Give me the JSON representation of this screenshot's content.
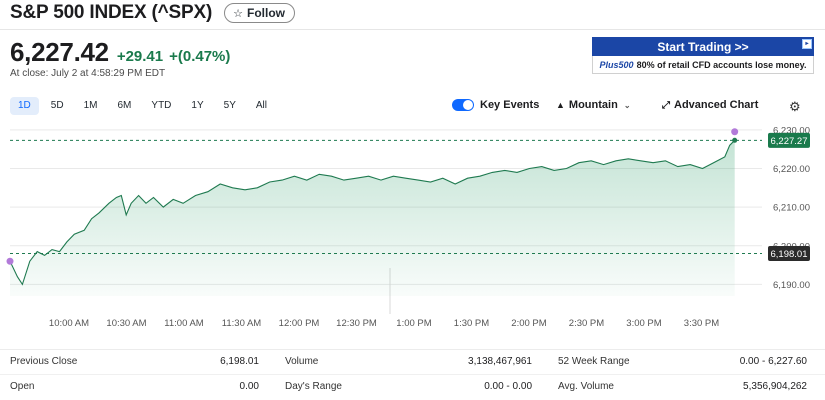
{
  "header": {
    "title": "S&P 500 INDEX (^SPX)",
    "follow_label": "Follow"
  },
  "quote": {
    "price": "6,227.42",
    "change": "+29.41",
    "change_percent": "+(0.47%)",
    "close_time": "At close: July 2 at 4:58:29 PM EDT"
  },
  "ad": {
    "cta": "Start Trading >>",
    "logo": "Plus500",
    "disclaimer": "80% of retail CFD accounts lose money."
  },
  "range_tabs": [
    "1D",
    "5D",
    "1M",
    "6M",
    "YTD",
    "1Y",
    "5Y",
    "All"
  ],
  "controls": {
    "key_events": "Key Events",
    "chart_type": "Mountain",
    "advanced_chart": "Advanced Chart"
  },
  "colors": {
    "positive": "#1a7a4c",
    "line": "#1f7a50",
    "accent": "#0f69ff",
    "event_dot": "#b27ad9"
  },
  "chart_data": {
    "type": "area",
    "ylim": [
      6187,
      6231
    ],
    "y_ticks": [
      "6,230.00",
      "6,220.00",
      "6,210.00",
      "6,200.00",
      "6,190.00"
    ],
    "x_ticks": [
      "10:00 AM",
      "10:30 AM",
      "11:00 AM",
      "11:30 AM",
      "12:00 PM",
      "12:30 PM",
      "1:00 PM",
      "1:30 PM",
      "2:00 PM",
      "2:30 PM",
      "3:00 PM",
      "3:30 PM"
    ],
    "current_label": "6,227.27",
    "current_value": 6227.27,
    "previous_close_label": "6,198.01",
    "previous_close_value": 6198.01,
    "series": [
      {
        "name": "^SPX",
        "points": [
          [
            0,
            6196
          ],
          [
            3,
            6192
          ],
          [
            5,
            6190
          ],
          [
            8,
            6196
          ],
          [
            11,
            6198.5
          ],
          [
            14,
            6197.5
          ],
          [
            17,
            6199
          ],
          [
            20,
            6198.5
          ],
          [
            23,
            6201
          ],
          [
            26,
            6203
          ],
          [
            30,
            6204
          ],
          [
            33,
            6207
          ],
          [
            36,
            6208.5
          ],
          [
            40,
            6211
          ],
          [
            43,
            6212.5
          ],
          [
            45,
            6213
          ],
          [
            47,
            6208
          ],
          [
            49,
            6211
          ],
          [
            52,
            6213
          ],
          [
            55,
            6211
          ],
          [
            58,
            6212.5
          ],
          [
            62,
            6210
          ],
          [
            66,
            6212
          ],
          [
            70,
            6211
          ],
          [
            75,
            6213
          ],
          [
            80,
            6214
          ],
          [
            85,
            6216
          ],
          [
            90,
            6215
          ],
          [
            95,
            6214.5
          ],
          [
            100,
            6215
          ],
          [
            105,
            6216.5
          ],
          [
            110,
            6217
          ],
          [
            115,
            6218
          ],
          [
            120,
            6217
          ],
          [
            125,
            6218.5
          ],
          [
            130,
            6218
          ],
          [
            135,
            6217
          ],
          [
            140,
            6217.5
          ],
          [
            145,
            6218
          ],
          [
            150,
            6217
          ],
          [
            155,
            6218
          ],
          [
            160,
            6217.5
          ],
          [
            165,
            6217
          ],
          [
            170,
            6216.5
          ],
          [
            175,
            6217.5
          ],
          [
            180,
            6216
          ],
          [
            185,
            6217.5
          ],
          [
            190,
            6218
          ],
          [
            195,
            6219
          ],
          [
            200,
            6219.5
          ],
          [
            205,
            6219
          ],
          [
            210,
            6220
          ],
          [
            215,
            6220.5
          ],
          [
            220,
            6219.5
          ],
          [
            225,
            6220
          ],
          [
            230,
            6221.5
          ],
          [
            235,
            6222
          ],
          [
            240,
            6221
          ],
          [
            245,
            6222
          ],
          [
            250,
            6222.5
          ],
          [
            255,
            6222
          ],
          [
            260,
            6221.5
          ],
          [
            265,
            6222
          ],
          [
            270,
            6220.5
          ],
          [
            275,
            6221
          ],
          [
            280,
            6220
          ],
          [
            283,
            6221
          ],
          [
            286,
            6222
          ],
          [
            289,
            6223
          ],
          [
            291,
            6226
          ],
          [
            293,
            6227.3
          ]
        ]
      }
    ],
    "event_markers": [
      [
        0,
        6196
      ],
      [
        293,
        6229
      ]
    ]
  },
  "stats": {
    "rows": [
      [
        {
          "label": "Previous Close",
          "value": "6,198.01"
        },
        {
          "label": "Volume",
          "value": "3,138,467,961"
        },
        {
          "label": "52 Week Range",
          "value": "0.00 - 6,227.60"
        }
      ],
      [
        {
          "label": "Open",
          "value": "0.00"
        },
        {
          "label": "Day's Range",
          "value": "0.00 - 0.00"
        },
        {
          "label": "Avg. Volume",
          "value": "5,356,904,262"
        }
      ]
    ]
  }
}
